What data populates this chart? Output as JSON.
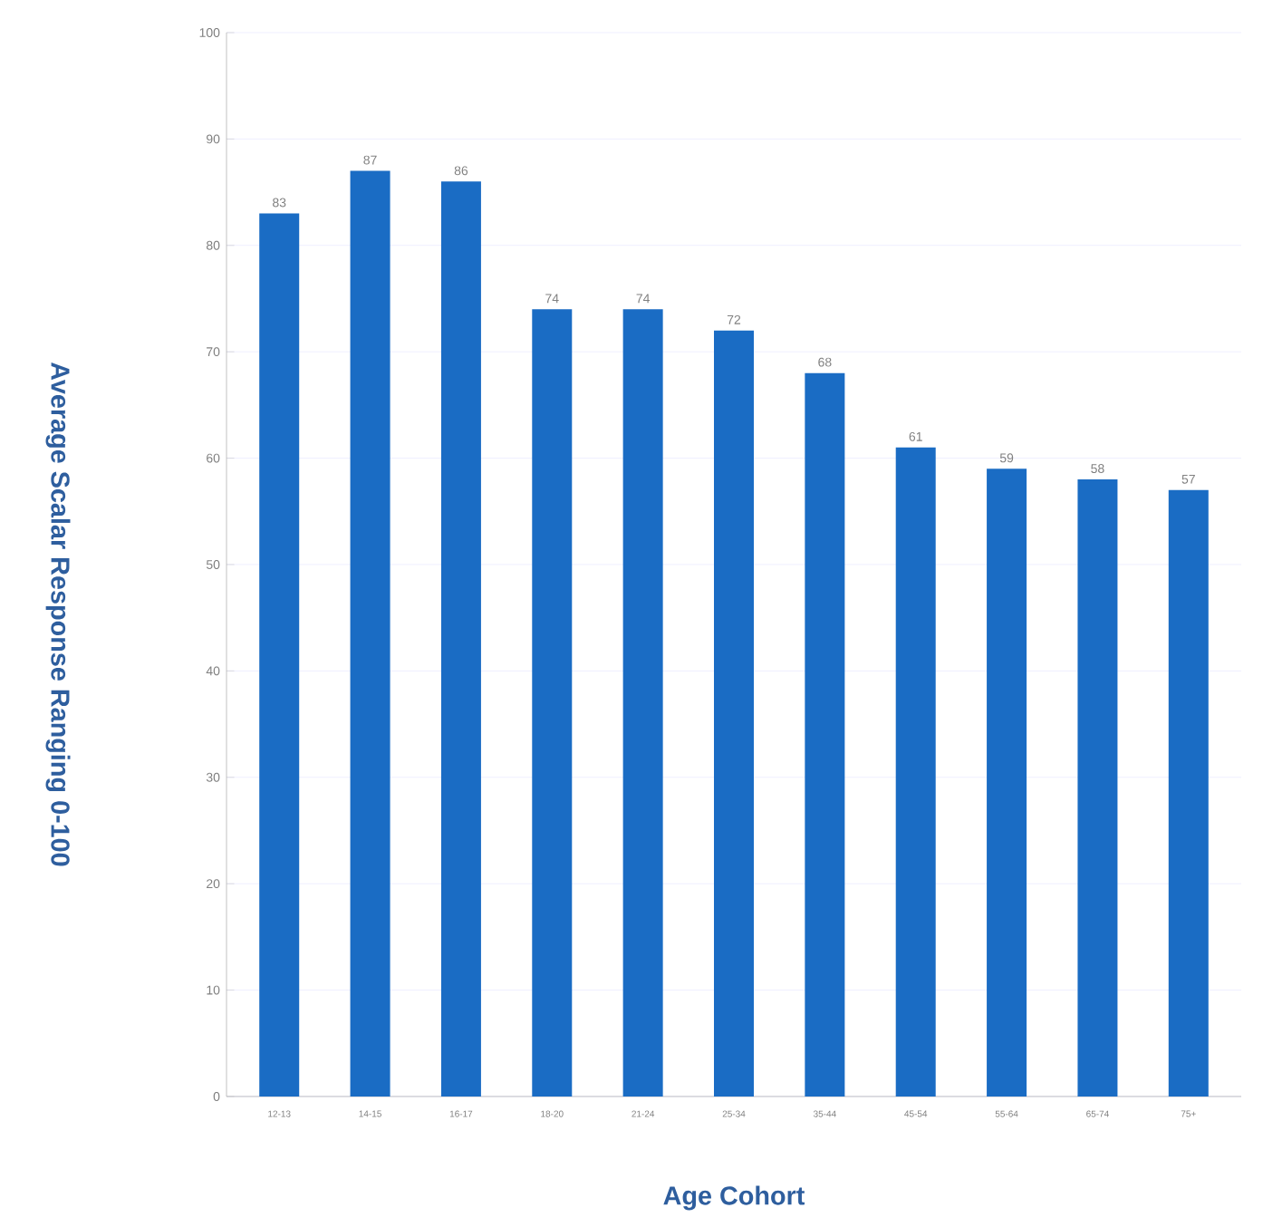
{
  "chart_data": {
    "type": "bar",
    "xlabel": "Age Cohort",
    "ylabel": "Average Scalar Response Ranging 0-100",
    "categories": [
      "12-13",
      "14-15",
      "16-17",
      "18-20",
      "21-24",
      "25-34",
      "35-44",
      "45-54",
      "55-64",
      "65-74",
      "75+"
    ],
    "values": [
      83,
      87,
      86,
      74,
      74,
      72,
      68,
      61,
      59,
      58,
      57
    ],
    "color": "#1a6cc4",
    "ylim": [
      0,
      100
    ],
    "yticks": [
      0,
      10,
      20,
      30,
      40,
      50,
      60,
      70,
      80,
      90,
      100
    ],
    "grid": "y",
    "data_labels": true
  }
}
